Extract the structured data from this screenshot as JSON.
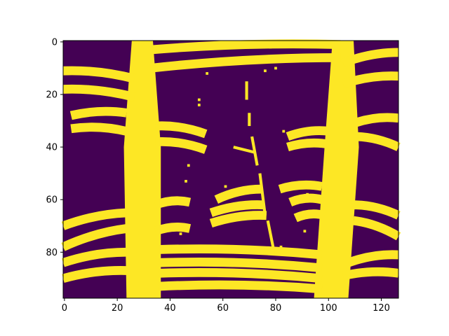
{
  "chart_data": {
    "type": "heatmap",
    "title": "",
    "xlabel": "",
    "ylabel": "",
    "image_shape": {
      "rows": 98,
      "cols": 127
    },
    "xlim": [
      -0.5,
      126.5
    ],
    "ylim": [
      97.5,
      -0.5
    ],
    "y_axis_inverted": true,
    "x_ticks": [
      0,
      20,
      40,
      60,
      80,
      100,
      120
    ],
    "x_tick_labels": [
      "0",
      "20",
      "40",
      "60",
      "80",
      "100",
      "120"
    ],
    "y_ticks": [
      0,
      20,
      40,
      60,
      80
    ],
    "y_tick_labels": [
      "0",
      "20",
      "40",
      "60",
      "80"
    ],
    "value_range": [
      0,
      1
    ],
    "colors": {
      "low": "#440154",
      "high": "#fde725"
    },
    "grid": false,
    "legend": "none",
    "bright_regions": [
      {
        "shape": "band",
        "x": [
          [
            26,
            0
          ],
          [
            23,
            40
          ],
          [
            24,
            97
          ],
          [
            36,
            97
          ],
          [
            36,
            40
          ],
          [
            33,
            0
          ]
        ]
      },
      {
        "shape": "band",
        "x": [
          [
            102,
            0
          ],
          [
            99,
            40
          ],
          [
            95,
            97
          ],
          [
            107,
            97
          ],
          [
            111,
            40
          ],
          [
            109,
            0
          ]
        ]
      },
      {
        "shape": "arc",
        "x": [
          0,
          26
        ],
        "y": [
          [
            11,
            0
          ],
          [
            14,
            26
          ]
        ]
      },
      {
        "shape": "arc",
        "x": [
          0,
          26
        ],
        "y": [
          [
            18,
            0
          ],
          [
            21,
            26
          ]
        ]
      },
      {
        "shape": "arc",
        "x": [
          3,
          23
        ],
        "y": [
          [
            28,
            3
          ],
          [
            27,
            23
          ]
        ]
      },
      {
        "shape": "arc",
        "x": [
          3,
          23
        ],
        "y": [
          [
            33,
            3
          ],
          [
            34,
            23
          ]
        ]
      },
      {
        "shape": "arc",
        "x": [
          0,
          23
        ],
        "y": [
          [
            70,
            0
          ],
          [
            65,
            23
          ]
        ]
      },
      {
        "shape": "arc",
        "x": [
          0,
          23
        ],
        "y": [
          [
            78,
            0
          ],
          [
            71,
            23
          ]
        ]
      },
      {
        "shape": "arc",
        "x": [
          0,
          23
        ],
        "y": [
          [
            84,
            0
          ],
          [
            80,
            23
          ]
        ]
      },
      {
        "shape": "arc",
        "x": [
          0,
          24
        ],
        "y": [
          [
            90,
            0
          ],
          [
            87,
            24
          ]
        ]
      },
      {
        "shape": "arc",
        "x": [
          33,
          104
        ],
        "y": [
          [
            3,
            33
          ],
          [
            1,
            104
          ]
        ]
      },
      {
        "shape": "arc",
        "x": [
          33,
          104
        ],
        "y": [
          [
            10,
            33
          ],
          [
            6,
            104
          ]
        ]
      },
      {
        "shape": "arc",
        "x": [
          106,
          126
        ],
        "y": [
          [
            8,
            106
          ],
          [
            4,
            126
          ]
        ]
      },
      {
        "shape": "arc",
        "x": [
          106,
          126
        ],
        "y": [
          [
            16,
            106
          ],
          [
            13,
            126
          ]
        ]
      },
      {
        "shape": "arc",
        "x": [
          110,
          126
        ],
        "y": [
          [
            31,
            110
          ],
          [
            29,
            126
          ]
        ]
      },
      {
        "shape": "arc",
        "x": [
          110,
          126
        ],
        "y": [
          [
            36,
            110
          ],
          [
            40,
            126
          ]
        ]
      },
      {
        "shape": "arc",
        "x": [
          110,
          126
        ],
        "y": [
          [
            62,
            110
          ],
          [
            66,
            126
          ]
        ]
      },
      {
        "shape": "arc",
        "x": [
          110,
          126
        ],
        "y": [
          [
            68,
            110
          ],
          [
            74,
            126
          ]
        ]
      },
      {
        "shape": "arc",
        "x": [
          108,
          126
        ],
        "y": [
          [
            84,
            108
          ],
          [
            81,
            126
          ]
        ]
      },
      {
        "shape": "arc",
        "x": [
          106,
          126
        ],
        "y": [
          [
            89,
            106
          ],
          [
            88,
            126
          ]
        ]
      },
      {
        "shape": "arc",
        "x": [
          35,
          53
        ],
        "y": [
          [
            32,
            35
          ],
          [
            35,
            53
          ]
        ]
      },
      {
        "shape": "arc",
        "x": [
          35,
          53
        ],
        "y": [
          [
            38,
            35
          ],
          [
            41,
            53
          ]
        ]
      },
      {
        "shape": "arc",
        "x": [
          85,
          100
        ],
        "y": [
          [
            36,
            85
          ],
          [
            34,
            100
          ]
        ]
      },
      {
        "shape": "arc",
        "x": [
          85,
          100
        ],
        "y": [
          [
            40,
            85
          ],
          [
            39,
            100
          ]
        ]
      },
      {
        "shape": "arc",
        "x": [
          35,
          47
        ],
        "y": [
          [
            62,
            35
          ],
          [
            61,
            47
          ]
        ]
      },
      {
        "shape": "arc",
        "x": [
          35,
          47
        ],
        "y": [
          [
            72,
            35
          ],
          [
            71,
            47
          ]
        ]
      },
      {
        "shape": "arc",
        "x": [
          58,
          74
        ],
        "y": [
          [
            60,
            58
          ],
          [
            56,
            74
          ]
        ]
      },
      {
        "shape": "arc",
        "x": [
          56,
          75
        ],
        "y": [
          [
            65,
            56
          ],
          [
            62,
            75
          ]
        ]
      },
      {
        "shape": "arc",
        "x": [
          56,
          76
        ],
        "y": [
          [
            69,
            56
          ],
          [
            66,
            76
          ]
        ]
      },
      {
        "shape": "arc",
        "x": [
          82,
          97
        ],
        "y": [
          [
            56,
            82
          ],
          [
            55,
            97
          ]
        ]
      },
      {
        "shape": "arc",
        "x": [
          86,
          97
        ],
        "y": [
          [
            61,
            86
          ],
          [
            60,
            97
          ]
        ]
      },
      {
        "shape": "arc",
        "x": [
          88,
          98
        ],
        "y": [
          [
            67,
            88
          ],
          [
            66,
            98
          ]
        ]
      },
      {
        "shape": "arc",
        "x": [
          36,
          97
        ],
        "y": [
          [
            79,
            36
          ],
          [
            81,
            97
          ]
        ]
      },
      {
        "shape": "arc",
        "x": [
          36,
          97
        ],
        "y": [
          [
            84,
            36
          ],
          [
            86,
            97
          ]
        ]
      },
      {
        "shape": "arc",
        "x": [
          36,
          97
        ],
        "y": [
          [
            88,
            36
          ],
          [
            90,
            97
          ]
        ]
      },
      {
        "shape": "arc",
        "x": [
          36,
          97
        ],
        "y": [
          [
            93,
            36
          ],
          [
            94,
            97
          ]
        ]
      },
      {
        "shape": "stroke",
        "pts": [
          [
            69,
            15
          ],
          [
            69,
            22
          ]
        ]
      },
      {
        "shape": "stroke",
        "pts": [
          [
            70,
            27
          ],
          [
            70,
            32
          ]
        ]
      },
      {
        "shape": "stroke",
        "pts": [
          [
            71,
            36
          ],
          [
            73,
            47
          ]
        ]
      },
      {
        "shape": "stroke",
        "pts": [
          [
            74,
            50
          ],
          [
            76,
            66
          ]
        ]
      },
      {
        "shape": "stroke",
        "pts": [
          [
            77,
            68
          ],
          [
            79,
            78
          ]
        ]
      },
      {
        "shape": "stroke",
        "pts": [
          [
            64,
            40
          ],
          [
            72,
            42
          ]
        ]
      },
      {
        "shape": "dot",
        "pts": [
          [
            51,
            22
          ],
          [
            51,
            24
          ],
          [
            47,
            47
          ],
          [
            46,
            53
          ],
          [
            44,
            73
          ],
          [
            42,
            78
          ],
          [
            61,
            55
          ],
          [
            78,
            2
          ],
          [
            76,
            11
          ],
          [
            80,
            10
          ],
          [
            54,
            12
          ],
          [
            83,
            34
          ],
          [
            92,
            58
          ],
          [
            91,
            72
          ],
          [
            82,
            78
          ],
          [
            80,
            80
          ]
        ]
      }
    ]
  }
}
